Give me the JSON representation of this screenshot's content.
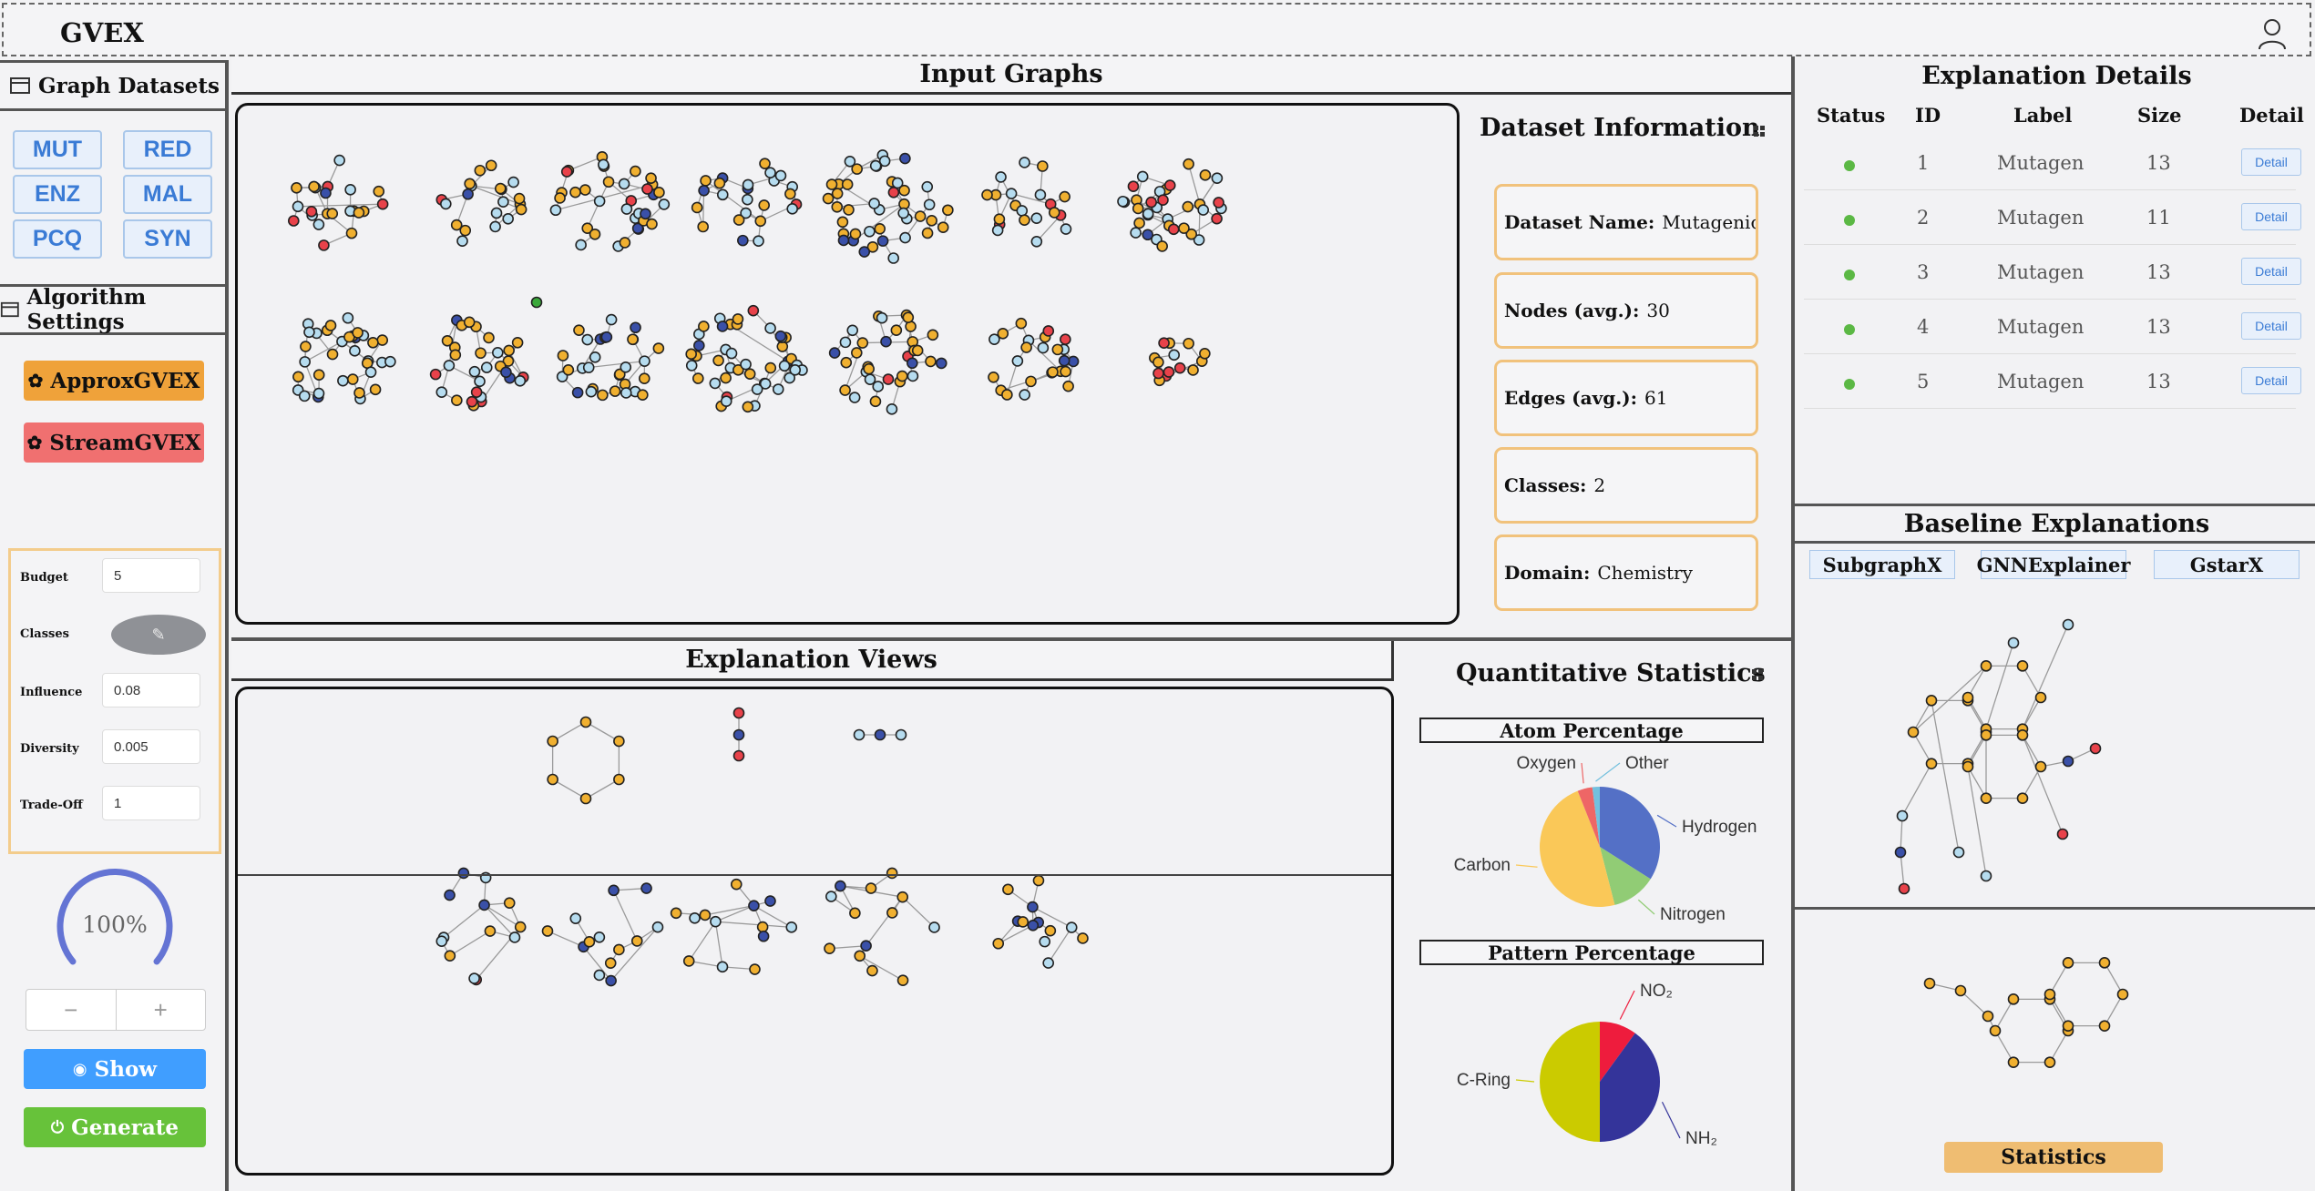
{
  "app": {
    "title": "GVEX"
  },
  "sidebar": {
    "datasets_header": "Graph Datasets",
    "datasets": [
      "MUT",
      "RED",
      "ENZ",
      "MAL",
      "PCQ",
      "SYN"
    ],
    "algorithm_header": "Algorithm Settings",
    "algorithms": [
      "ApproxGVEX",
      "StreamGVEX"
    ],
    "params": {
      "budget_label": "Budget",
      "budget_value": "5",
      "classes_label": "Classes",
      "influence_label": "Influence",
      "influence_value": "0.08",
      "diversity_label": "Diversity",
      "diversity_value": "0.005",
      "tradeoff_label": "Trade-Off",
      "tradeoff_value": "1"
    },
    "progress": {
      "text": "100%",
      "value": 1.0
    },
    "stepper": {
      "minus": "−",
      "plus": "+"
    },
    "show_label": "Show",
    "generate_label": "Generate"
  },
  "input_graphs": {
    "title": "Input Graphs"
  },
  "dataset_info": {
    "title": "Dataset Information",
    "items": [
      {
        "label": "Dataset Name:",
        "value": "Mutagenicity"
      },
      {
        "label": "Nodes (avg.):",
        "value": "30"
      },
      {
        "label": "Edges (avg.):",
        "value": "61"
      },
      {
        "label": "Classes:",
        "value": "2"
      },
      {
        "label": "Domain:",
        "value": "Chemistry"
      }
    ]
  },
  "explanation_views": {
    "title": "Explanation Views"
  },
  "quant_stats": {
    "title": "Quantitative Statistics",
    "atom_title": "Atom Percentage",
    "pattern_title": "Pattern Percentage"
  },
  "chart_data": [
    {
      "type": "pie",
      "title": "Atom Percentage",
      "categories": [
        "Hydrogen",
        "Nitrogen",
        "Carbon",
        "Oxygen",
        "Other"
      ],
      "values": [
        34,
        12,
        48,
        4,
        2
      ],
      "colors": [
        "#5470c6",
        "#91cc75",
        "#fac858",
        "#ee6666",
        "#73c0de"
      ]
    },
    {
      "type": "pie",
      "title": "Pattern Percentage",
      "categories": [
        "NO₂",
        "NH₂",
        "C-Ring"
      ],
      "values": [
        10,
        40,
        50
      ],
      "colors": [
        "#ee1c3d",
        "#34349a",
        "#cbcb00"
      ]
    }
  ],
  "explanation_details": {
    "title": "Explanation Details",
    "columns": [
      "Status",
      "ID",
      "Label",
      "Size",
      "Detail"
    ],
    "rows": [
      {
        "id": "1",
        "label": "Mutagen",
        "size": "13",
        "detail": "Detail"
      },
      {
        "id": "2",
        "label": "Mutagen",
        "size": "11",
        "detail": "Detail"
      },
      {
        "id": "3",
        "label": "Mutagen",
        "size": "13",
        "detail": "Detail"
      },
      {
        "id": "4",
        "label": "Mutagen",
        "size": "13",
        "detail": "Detail"
      },
      {
        "id": "5",
        "label": "Mutagen",
        "size": "13",
        "detail": "Detail"
      }
    ]
  },
  "baseline": {
    "title": "Baseline Explanations",
    "methods": [
      "SubgraphX",
      "GNNExplainer",
      "GstarX"
    ],
    "stats_label": "Statistics"
  },
  "colors": {
    "carbon": "#f0b030",
    "hydrogen": "#b6dcef",
    "nitrogen": "#3a50a8",
    "oxygen": "#e8424a",
    "other": "#3aa83a",
    "approx": "#efa23a",
    "stream": "#f07070",
    "show": "#409eff",
    "generate": "#67c23a"
  }
}
